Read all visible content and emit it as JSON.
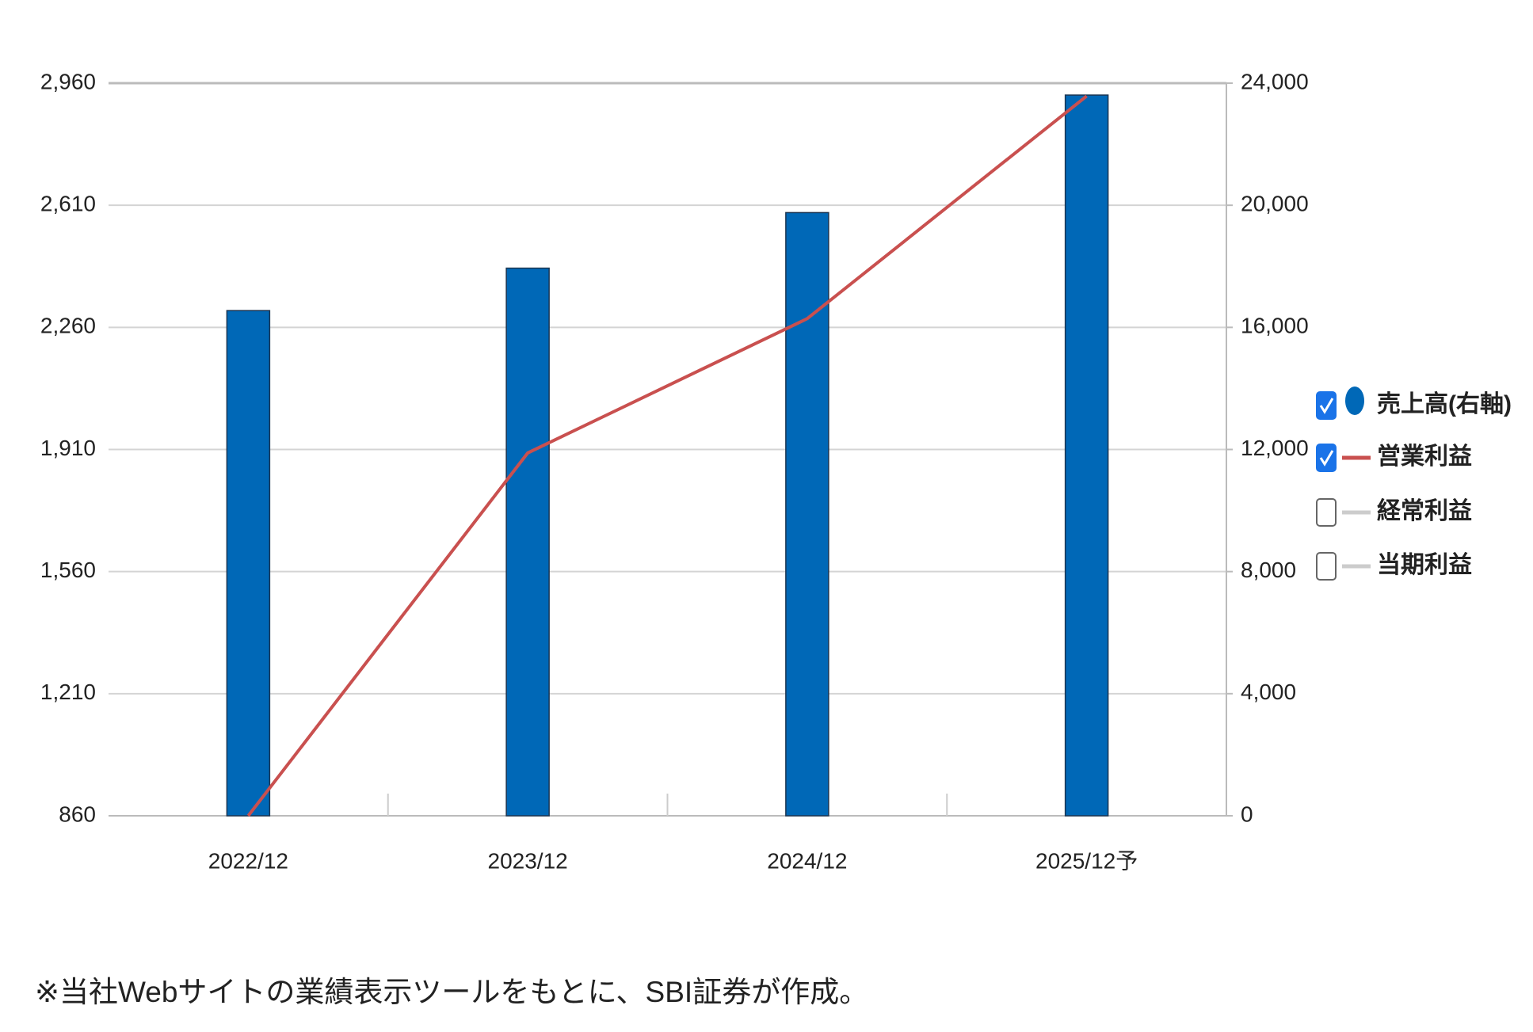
{
  "chart_data": {
    "type": "bar_line",
    "categories": [
      "2022/12",
      "2023/12",
      "2024/12",
      "2025/12予"
    ],
    "series": [
      {
        "name": "売上高(右軸)",
        "type": "bar",
        "axis": "y2",
        "color": "#0068b7",
        "checked": true,
        "values": [
          16550,
          17940,
          19760,
          23610
        ]
      },
      {
        "name": "営業利益",
        "type": "line",
        "axis": "y",
        "color": "#c9504f",
        "checked": true,
        "values": [
          860,
          1900,
          2285,
          2923
        ]
      },
      {
        "name": "経常利益",
        "type": "line",
        "axis": "y",
        "color": "#cccccc",
        "checked": false,
        "values": [
          null,
          null,
          null,
          null
        ]
      },
      {
        "name": "当期利益",
        "type": "line",
        "axis": "y",
        "color": "#cccccc",
        "checked": false,
        "values": [
          null,
          null,
          null,
          null
        ]
      }
    ],
    "ylim": [
      860,
      2960
    ],
    "yticks": [
      860,
      {
        "value": 1210,
        "label": "1,210"
      },
      {
        "value": 1560,
        "label": "1,560"
      },
      {
        "value": 1910,
        "label": "1,910"
      },
      {
        "value": 2260,
        "label": "2,260"
      },
      {
        "value": 2610,
        "label": "2,610"
      },
      {
        "value": 2960,
        "label": "2,960"
      }
    ],
    "y2lim": [
      0,
      24000
    ],
    "y2ticks": [
      0,
      {
        "value": 4000,
        "label": "4,000"
      },
      {
        "value": 8000,
        "label": "8,000"
      },
      {
        "value": 12000,
        "label": "12,000"
      },
      {
        "value": 16000,
        "label": "16,000"
      },
      {
        "value": 20000,
        "label": "20,000"
      },
      {
        "value": 24000,
        "label": "24,000"
      }
    ],
    "grid": true,
    "legend": "right",
    "note": "※当社Webサイトの業績表示ツールをもとに、SBI証券が作成。"
  }
}
